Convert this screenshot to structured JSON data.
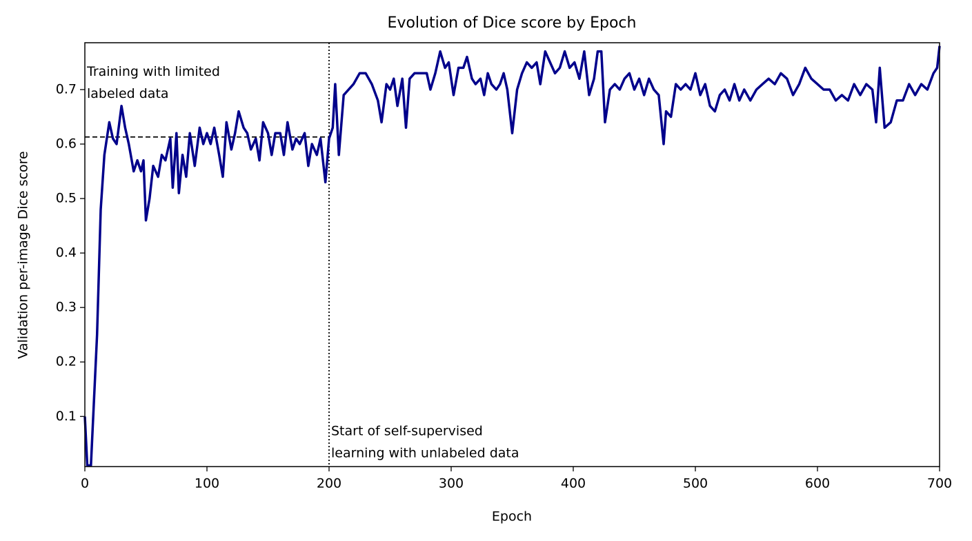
{
  "chart_data": {
    "type": "line",
    "title": "Evolution of Dice score by Epoch",
    "xlabel": "Epoch",
    "ylabel": "Validation per-image Dice score",
    "x": [
      0,
      2,
      5,
      10,
      13,
      16,
      20,
      23,
      26,
      30,
      33,
      36,
      40,
      43,
      46,
      48,
      50,
      53,
      56,
      60,
      63,
      66,
      70,
      72,
      75,
      77,
      80,
      83,
      86,
      90,
      94,
      97,
      100,
      103,
      106,
      110,
      113,
      116,
      120,
      123,
      126,
      130,
      133,
      136,
      140,
      143,
      146,
      150,
      153,
      156,
      160,
      163,
      166,
      170,
      173,
      176,
      180,
      183,
      186,
      190,
      193,
      197,
      200,
      203,
      205,
      208,
      212,
      216,
      220,
      225,
      230,
      235,
      240,
      243,
      247,
      250,
      253,
      256,
      260,
      263,
      266,
      270,
      275,
      280,
      283,
      287,
      291,
      295,
      298,
      302,
      306,
      310,
      313,
      317,
      320,
      324,
      327,
      330,
      333,
      337,
      340,
      343,
      346,
      350,
      354,
      358,
      362,
      366,
      370,
      373,
      377,
      381,
      385,
      389,
      393,
      397,
      401,
      405,
      409,
      413,
      417,
      420,
      423,
      426,
      430,
      434,
      438,
      442,
      446,
      450,
      454,
      458,
      462,
      466,
      470,
      474,
      476,
      480,
      484,
      488,
      492,
      496,
      500,
      504,
      508,
      512,
      516,
      520,
      524,
      528,
      532,
      536,
      540,
      545,
      550,
      555,
      560,
      565,
      570,
      575,
      580,
      585,
      590,
      595,
      600,
      605,
      610,
      615,
      620,
      625,
      630,
      635,
      640,
      645,
      648,
      651,
      655,
      660,
      665,
      670,
      675,
      680,
      685,
      690,
      695,
      698,
      700
    ],
    "series": [
      {
        "name": "Dice score",
        "color": "#00008b",
        "values": [
          0.1,
          0.01,
          0.01,
          0.25,
          0.48,
          0.58,
          0.64,
          0.61,
          0.6,
          0.67,
          0.63,
          0.6,
          0.55,
          0.57,
          0.55,
          0.57,
          0.46,
          0.5,
          0.56,
          0.54,
          0.58,
          0.57,
          0.61,
          0.52,
          0.62,
          0.51,
          0.58,
          0.54,
          0.62,
          0.56,
          0.63,
          0.6,
          0.62,
          0.6,
          0.63,
          0.58,
          0.54,
          0.64,
          0.59,
          0.62,
          0.66,
          0.63,
          0.62,
          0.59,
          0.61,
          0.57,
          0.64,
          0.62,
          0.58,
          0.62,
          0.62,
          0.58,
          0.64,
          0.59,
          0.61,
          0.6,
          0.62,
          0.56,
          0.6,
          0.58,
          0.61,
          0.53,
          0.61,
          0.63,
          0.71,
          0.58,
          0.69,
          0.7,
          0.71,
          0.73,
          0.73,
          0.71,
          0.68,
          0.64,
          0.71,
          0.7,
          0.72,
          0.67,
          0.72,
          0.63,
          0.72,
          0.73,
          0.73,
          0.73,
          0.7,
          0.73,
          0.77,
          0.74,
          0.75,
          0.69,
          0.74,
          0.74,
          0.76,
          0.72,
          0.71,
          0.72,
          0.69,
          0.73,
          0.71,
          0.7,
          0.71,
          0.73,
          0.7,
          0.62,
          0.7,
          0.73,
          0.75,
          0.74,
          0.75,
          0.71,
          0.77,
          0.75,
          0.73,
          0.74,
          0.77,
          0.74,
          0.75,
          0.72,
          0.77,
          0.69,
          0.72,
          0.77,
          0.77,
          0.64,
          0.7,
          0.71,
          0.7,
          0.72,
          0.73,
          0.7,
          0.72,
          0.69,
          0.72,
          0.7,
          0.69,
          0.6,
          0.66,
          0.65,
          0.71,
          0.7,
          0.71,
          0.7,
          0.73,
          0.69,
          0.71,
          0.67,
          0.66,
          0.69,
          0.7,
          0.68,
          0.71,
          0.68,
          0.7,
          0.68,
          0.7,
          0.71,
          0.72,
          0.71,
          0.73,
          0.72,
          0.69,
          0.71,
          0.74,
          0.72,
          0.71,
          0.7,
          0.7,
          0.68,
          0.69,
          0.68,
          0.71,
          0.69,
          0.71,
          0.7,
          0.64,
          0.74,
          0.63,
          0.64,
          0.68,
          0.68,
          0.71,
          0.69,
          0.71,
          0.7,
          0.73,
          0.74,
          0.78
        ]
      }
    ],
    "xlim": [
      0,
      700
    ],
    "xticks": [
      0,
      100,
      200,
      300,
      400,
      500,
      600,
      700
    ],
    "ylim": [
      0.008,
      0.786
    ],
    "yticks": [
      0.1,
      0.2,
      0.3,
      0.4,
      0.5,
      0.6,
      0.7
    ],
    "hline": {
      "value": 0.613,
      "x_end": 200
    },
    "vline": 200,
    "annotations": [
      {
        "lines": [
          "Training with limited",
          "labeled data"
        ],
        "x": 0,
        "y": 0.75
      },
      {
        "lines": [
          "Start of self-supervised",
          "learning with unlabeled data"
        ],
        "x": 200,
        "y": 0.09
      }
    ]
  }
}
